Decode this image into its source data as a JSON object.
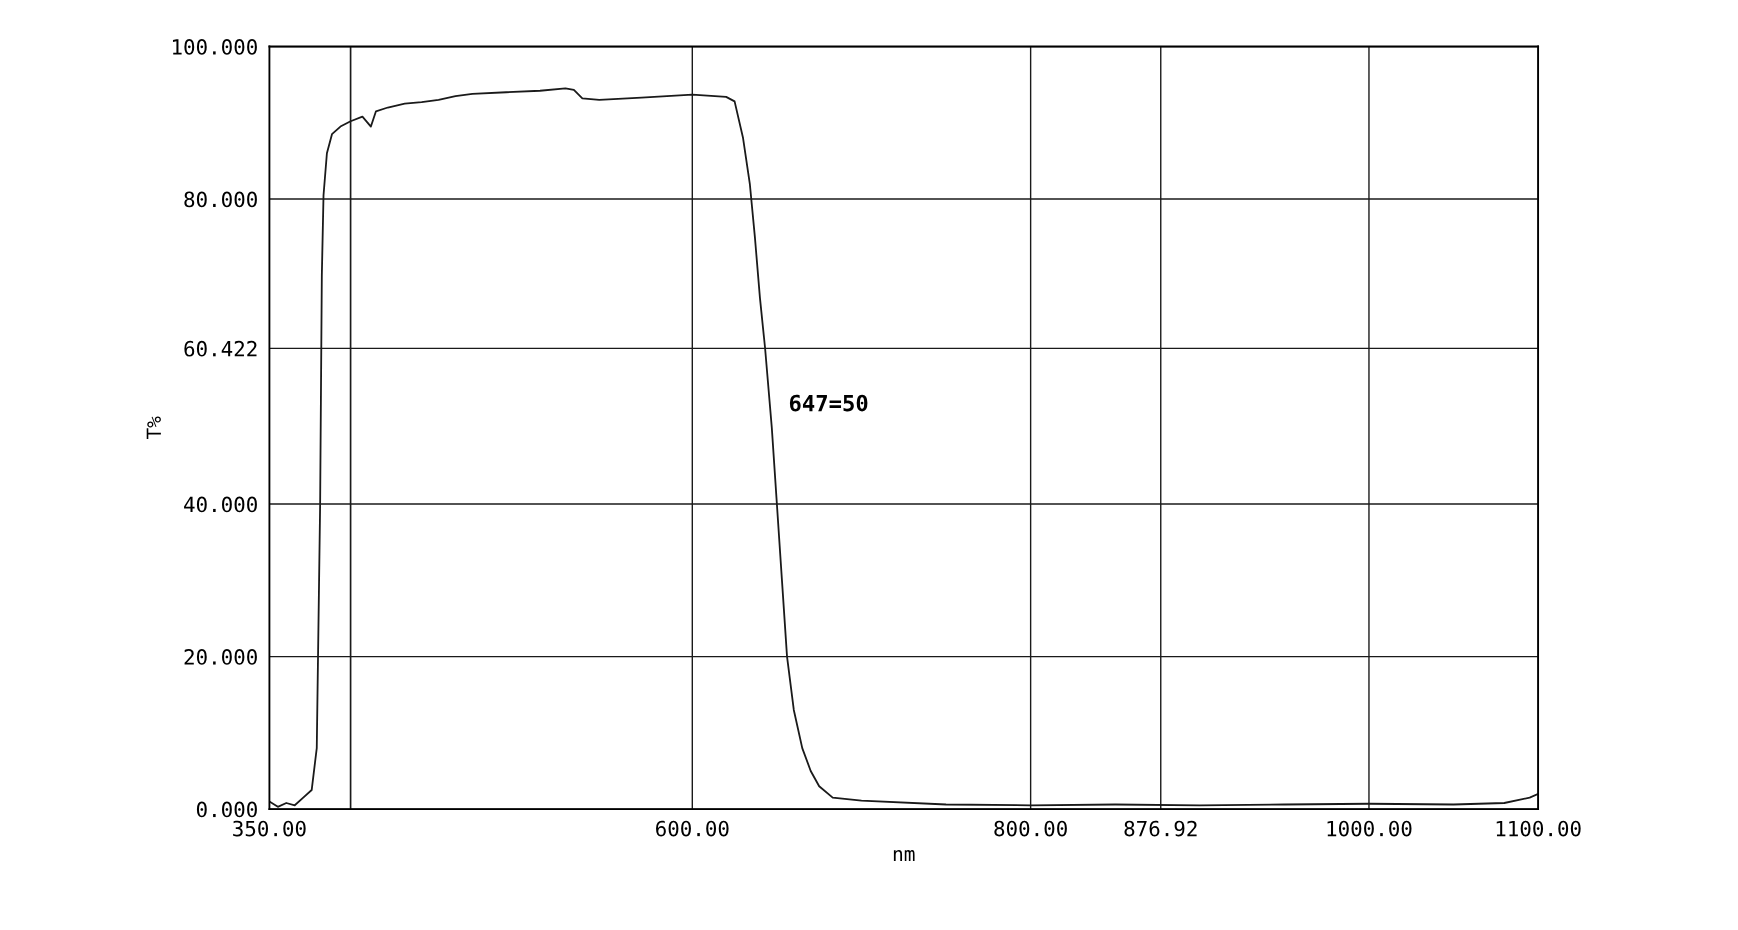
{
  "chart_data": {
    "type": "line",
    "xlabel": "nm",
    "ylabel": "T%",
    "x": [
      350,
      355,
      360,
      365,
      370,
      375,
      378,
      380,
      381,
      382,
      384,
      387,
      392,
      398,
      405,
      410,
      413,
      420,
      430,
      440,
      450,
      460,
      470,
      490,
      510,
      525,
      530,
      535,
      545,
      570,
      600,
      620,
      625,
      630,
      634,
      637,
      640,
      643,
      647,
      650,
      653,
      656,
      660,
      665,
      670,
      675,
      683,
      700,
      750,
      800,
      850,
      900,
      950,
      1000,
      1050,
      1080,
      1095,
      1100
    ],
    "series": [
      {
        "color": "#1a1a1a",
        "values": [
          1.0,
          0.3,
          0.8,
          0.5,
          1.5,
          2.5,
          8,
          40,
          70,
          80.5,
          86,
          88.5,
          89.5,
          90.2,
          90.8,
          89.5,
          91.5,
          92,
          92.5,
          92.7,
          93,
          93.5,
          93.8,
          94.0,
          94.2,
          94.5,
          94.3,
          93.2,
          93.0,
          93.3,
          93.7,
          93.4,
          92.8,
          88,
          82,
          75,
          67,
          60.5,
          50,
          40,
          30,
          20,
          13,
          8,
          5,
          3,
          1.5,
          1.1,
          0.6,
          0.5,
          0.6,
          0.5,
          0.6,
          0.7,
          0.6,
          0.8,
          1.5,
          2.0
        ]
      }
    ],
    "xlim": [
      350,
      1100
    ],
    "xticks": [
      {
        "value": 350,
        "label": "350.00"
      },
      {
        "value": 600,
        "label": "600.00"
      },
      {
        "value": 800,
        "label": "800.00"
      },
      {
        "value": 876.92,
        "label": "876.92"
      },
      {
        "value": 1000,
        "label": "1000.00"
      },
      {
        "value": 1100,
        "label": "1100.00"
      }
    ],
    "ylim": [
      0,
      100
    ],
    "yticks": [
      {
        "value": 0,
        "label": "0.000"
      },
      {
        "value": 20,
        "label": "20.000"
      },
      {
        "value": 40,
        "label": "40.000"
      },
      {
        "value": 60.422,
        "label": "60.422"
      },
      {
        "value": 80,
        "label": "80.000"
      },
      {
        "value": 100,
        "label": "100.000"
      }
    ],
    "grid": true,
    "ref_lines": [
      {
        "axis": "x",
        "value": 398,
        "label": null,
        "color": "#1a1a1a"
      }
    ],
    "annotations": [
      {
        "text": "647=50",
        "x": 647,
        "y": 50
      }
    ]
  }
}
